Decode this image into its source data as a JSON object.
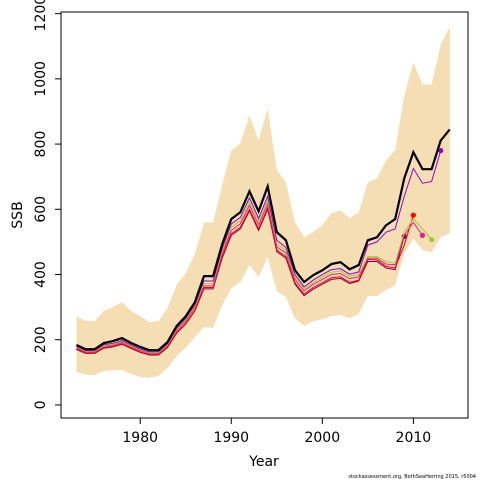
{
  "chart_data": {
    "type": "line",
    "xlabel": "Year",
    "ylabel": "SSB",
    "footnote": "stockassessment.org, BothSeaHerring 2015, r5004",
    "xlim": [
      1971.3,
      2016.0
    ],
    "ylim": [
      -40,
      1205
    ],
    "xticks": [
      1980,
      1990,
      2000,
      2010
    ],
    "yticks": [
      0,
      200,
      400,
      600,
      800,
      1000,
      1200
    ],
    "x": [
      1973,
      1974,
      1975,
      1976,
      1977,
      1978,
      1979,
      1980,
      1981,
      1982,
      1983,
      1984,
      1985,
      1986,
      1987,
      1988,
      1989,
      1990,
      1991,
      1992,
      1993,
      1994,
      1995,
      1996,
      1997,
      1998,
      1999,
      2000,
      2001,
      2002,
      2003,
      2004,
      2005,
      2006,
      2007,
      2008,
      2009,
      2010,
      2011,
      2012,
      2013,
      2014
    ],
    "band_color": "#f5deb3",
    "band_lower": [
      101,
      92,
      92,
      104,
      107,
      107,
      95,
      86,
      83,
      89,
      113,
      150,
      175,
      208,
      239,
      236,
      306,
      358,
      377,
      429,
      392,
      453,
      349,
      331,
      266,
      242,
      257,
      263,
      272,
      276,
      266,
      279,
      334,
      334,
      352,
      367,
      465,
      511,
      475,
      468,
      514,
      527
    ],
    "band_upper": [
      272,
      257,
      257,
      288,
      300,
      315,
      288,
      272,
      254,
      257,
      297,
      367,
      404,
      462,
      560,
      560,
      674,
      781,
      802,
      888,
      811,
      909,
      720,
      683,
      560,
      514,
      530,
      551,
      588,
      597,
      573,
      591,
      683,
      695,
      750,
      781,
      949,
      1050,
      983,
      983,
      1105,
      1160
    ],
    "series": [
      {
        "color": "#800060",
        "width": 1,
        "point": true,
        "values": [
          170,
          158,
          158,
          174,
          178,
          186,
          173,
          161,
          153,
          153,
          176,
          220,
          248,
          288,
          356,
          356,
          450,
          520,
          540,
          595,
          535,
          600,
          470,
          450,
          370,
          335,
          355,
          370,
          385,
          388,
          372,
          380,
          440,
          440,
          420,
          415,
          517,
          null,
          null,
          null,
          null,
          null
        ]
      },
      {
        "color": "#ff0000",
        "width": 1,
        "point": true,
        "values": [
          172,
          160,
          160,
          176,
          180,
          188,
          175,
          163,
          155,
          155,
          178,
          222,
          250,
          290,
          360,
          360,
          455,
          525,
          545,
          600,
          540,
          605,
          475,
          455,
          375,
          340,
          360,
          375,
          390,
          393,
          376,
          383,
          446,
          445,
          425,
          420,
          490,
          582,
          null,
          null,
          null,
          null
        ]
      },
      {
        "color": "#e0218a",
        "width": 1,
        "point": true,
        "values": [
          175,
          163,
          163,
          180,
          184,
          192,
          179,
          167,
          159,
          159,
          182,
          228,
          256,
          298,
          365,
          365,
          465,
          535,
          556,
          612,
          552,
          617,
          485,
          466,
          385,
          350,
          370,
          385,
          400,
          403,
          387,
          393,
          450,
          450,
          432,
          430,
          520,
          560,
          520,
          null,
          null,
          null
        ]
      },
      {
        "color": "#9acd32",
        "width": 1,
        "point": true,
        "values": [
          178,
          165,
          165,
          182,
          186,
          195,
          181,
          170,
          161,
          161,
          185,
          232,
          260,
          303,
          372,
          372,
          472,
          545,
          565,
          622,
          562,
          627,
          495,
          474,
          392,
          356,
          376,
          392,
          407,
          411,
          394,
          400,
          455,
          455,
          440,
          435,
          530,
          570,
          540,
          507,
          null,
          null
        ]
      },
      {
        "color": "#9400d3",
        "width": 1,
        "point": true,
        "values": [
          180,
          167,
          167,
          185,
          189,
          198,
          184,
          172,
          163,
          163,
          188,
          236,
          265,
          308,
          380,
          380,
          480,
          555,
          575,
          635,
          572,
          640,
          505,
          483,
          400,
          362,
          383,
          400,
          415,
          418,
          401,
          408,
          490,
          500,
          530,
          540,
          640,
          725,
          680,
          685,
          780,
          null
        ]
      },
      {
        "color": "#000000",
        "width": 2.2,
        "point": false,
        "values": [
          184,
          171,
          171,
          190,
          196,
          205,
          190,
          178,
          168,
          168,
          193,
          242,
          272,
          315,
          395,
          395,
          493,
          570,
          591,
          655,
          594,
          670,
          530,
          505,
          413,
          377,
          398,
          413,
          432,
          438,
          416,
          429,
          505,
          514,
          551,
          570,
          695,
          775,
          723,
          723,
          811,
          845
        ]
      }
    ]
  }
}
